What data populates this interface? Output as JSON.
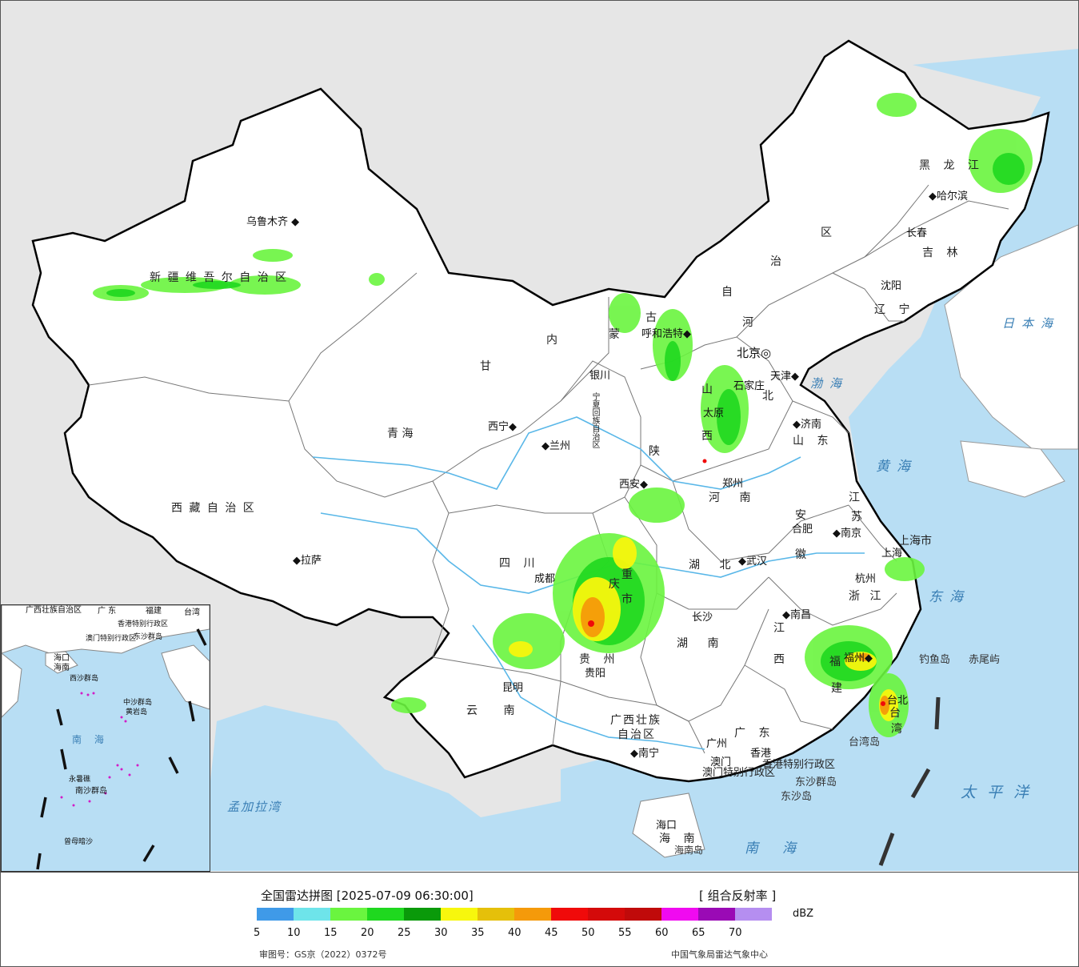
{
  "map": {
    "regions": [
      {
        "name": "新 疆 维 吾 尔 自 治 区",
        "key": "xinjiang"
      },
      {
        "name": "西 藏 自 治 区",
        "key": "xizang"
      },
      {
        "name": "青      海",
        "key": "qinghai"
      },
      {
        "name": "甘",
        "key": "gansu"
      },
      {
        "name": "内",
        "key": "neimeng1"
      },
      {
        "name": "蒙",
        "key": "neimeng2"
      },
      {
        "name": "古",
        "key": "neimeng3"
      },
      {
        "name": "自",
        "key": "neimeng4"
      },
      {
        "name": "治",
        "key": "neimeng5"
      },
      {
        "name": "区",
        "key": "neimeng6"
      },
      {
        "name": "黑 龙 江",
        "key": "heilongjiang"
      },
      {
        "name": "吉 林",
        "key": "jilin"
      },
      {
        "name": "辽 宁",
        "key": "liaoning"
      },
      {
        "name": "河",
        "key": "hebei1"
      },
      {
        "name": "北",
        "key": "hebei2"
      },
      {
        "name": "山",
        "key": "shanxi1"
      },
      {
        "name": "西",
        "key": "shanxi2"
      },
      {
        "name": "山 东",
        "key": "shandong"
      },
      {
        "name": "河 南",
        "key": "henan"
      },
      {
        "name": "陕",
        "key": "shaanxi"
      },
      {
        "name": "四  川",
        "key": "sichuan"
      },
      {
        "name": "湖 北",
        "key": "hubei"
      },
      {
        "name": "湖 南",
        "key": "hunan"
      },
      {
        "name": "安",
        "key": "anhui1"
      },
      {
        "name": "徽",
        "key": "anhui2"
      },
      {
        "name": "江",
        "key": "jiangsu1"
      },
      {
        "name": "苏",
        "key": "jiangsu2"
      },
      {
        "name": "浙 江",
        "key": "zhejiang"
      },
      {
        "name": "江",
        "key": "jiangxi1"
      },
      {
        "name": "西",
        "key": "jiangxi2"
      },
      {
        "name": "福",
        "key": "fujian1"
      },
      {
        "name": "建",
        "key": "fujian2"
      },
      {
        "name": "贵  州",
        "key": "guizhou"
      },
      {
        "name": "云  南",
        "key": "yunnan"
      },
      {
        "name": "广西壮族",
        "key": "guangxi1"
      },
      {
        "name": "自治区",
        "key": "guangxi2"
      },
      {
        "name": "广 东",
        "key": "guangdong"
      },
      {
        "name": "海 南",
        "key": "hainan"
      },
      {
        "name": "台",
        "key": "taiwan1"
      },
      {
        "name": "湾",
        "key": "taiwan2"
      },
      {
        "name": "重",
        "key": "chongqing1"
      },
      {
        "name": "庆",
        "key": "chongqing2"
      },
      {
        "name": "市",
        "key": "chongqing3"
      },
      {
        "name": "上海市",
        "key": "shanghai"
      },
      {
        "name": "宁夏回族自治区",
        "key": "ningxia"
      },
      {
        "name": "香港特别行政区",
        "key": "hk"
      },
      {
        "name": "澳门特别行政区",
        "key": "macau"
      }
    ],
    "cities": [
      {
        "name": "乌鲁木齐",
        "key": "urumqi"
      },
      {
        "name": "拉萨",
        "key": "lhasa"
      },
      {
        "name": "西宁",
        "key": "xining"
      },
      {
        "name": "兰州",
        "key": "lanzhou"
      },
      {
        "name": "银川",
        "key": "yinchuan"
      },
      {
        "name": "呼和浩特",
        "key": "hohhot"
      },
      {
        "name": "北京",
        "key": "beijing"
      },
      {
        "name": "天津",
        "key": "tianjin"
      },
      {
        "name": "石家庄",
        "key": "shijiazhuang"
      },
      {
        "name": "太原",
        "key": "taiyuan"
      },
      {
        "name": "济南",
        "key": "jinan"
      },
      {
        "name": "郑州",
        "key": "zhengzhou"
      },
      {
        "name": "西安",
        "key": "xian"
      },
      {
        "name": "成都",
        "key": "chengdu"
      },
      {
        "name": "武汉",
        "key": "wuhan"
      },
      {
        "name": "合肥",
        "key": "hefei"
      },
      {
        "name": "南京",
        "key": "nanjing"
      },
      {
        "name": "上海",
        "key": "shanghai_c"
      },
      {
        "name": "杭州",
        "key": "hangzhou"
      },
      {
        "name": "长沙",
        "key": "changsha"
      },
      {
        "name": "南昌",
        "key": "nanchang"
      },
      {
        "name": "福州",
        "key": "fuzhou"
      },
      {
        "name": "台北",
        "key": "taibei"
      },
      {
        "name": "贵阳",
        "key": "guiyang"
      },
      {
        "name": "昆明",
        "key": "kunming"
      },
      {
        "name": "南宁",
        "key": "nanning"
      },
      {
        "name": "广州",
        "key": "guangzhou"
      },
      {
        "name": "澳门",
        "key": "aomen"
      },
      {
        "name": "香港",
        "key": "xianggang"
      },
      {
        "name": "海口",
        "key": "haikou"
      },
      {
        "name": "沈阳",
        "key": "shenyang"
      },
      {
        "name": "长春",
        "key": "changchun"
      },
      {
        "name": "哈尔滨",
        "key": "harbin"
      }
    ],
    "islands": [
      {
        "name": "东沙群岛",
        "key": "dongsha1"
      },
      {
        "name": "东沙岛",
        "key": "dongsha2"
      },
      {
        "name": "台湾岛",
        "key": "taiwandao"
      },
      {
        "name": "海南岛",
        "key": "hainandao"
      },
      {
        "name": "钓鱼岛",
        "key": "diaoyu"
      },
      {
        "name": "赤尾屿",
        "key": "chiwei"
      }
    ],
    "seas": [
      {
        "name": "日本海",
        "key": "japan"
      },
      {
        "name": "渤海",
        "key": "bohai"
      },
      {
        "name": "黄海",
        "key": "huanghai"
      },
      {
        "name": "东海",
        "key": "donghai"
      },
      {
        "name": "太平洋",
        "key": "pacific"
      },
      {
        "name": "南海",
        "key": "nanhai"
      },
      {
        "name": "孟加拉湾",
        "key": "bengal"
      }
    ],
    "inset": {
      "labels": [
        "广西壮族自治区",
        "广 东",
        "福建",
        "台湾",
        "澳门特别行政区",
        "香港特别行政区",
        "东沙群岛",
        "海口",
        "海南",
        "西沙群岛",
        "中沙群岛",
        "黄岩岛",
        "南 海",
        "永暑礁",
        "南沙群岛",
        "曾母暗沙"
      ]
    }
  },
  "legend": {
    "title": "全国雷达拼图 [2025-07-09 06:30:00]",
    "product": "[ 组合反射率 ]",
    "unit": "dBZ",
    "colors": [
      "#3f9ae8",
      "#6ee4ea",
      "#6af53f",
      "#1fd81f",
      "#0a9a0a",
      "#f7f70d",
      "#e5c00a",
      "#f59a0a",
      "#f00a0a",
      "#d40a0a",
      "#c00a0a",
      "#f00af0",
      "#9a0ab5",
      "#b58ef0"
    ],
    "ticks": [
      "5",
      "10",
      "15",
      "20",
      "25",
      "30",
      "35",
      "40",
      "45",
      "50",
      "55",
      "60",
      "65",
      "70"
    ],
    "approval": "审图号：GS京（2022）0372号",
    "source": "中国气象局雷达气象中心"
  }
}
